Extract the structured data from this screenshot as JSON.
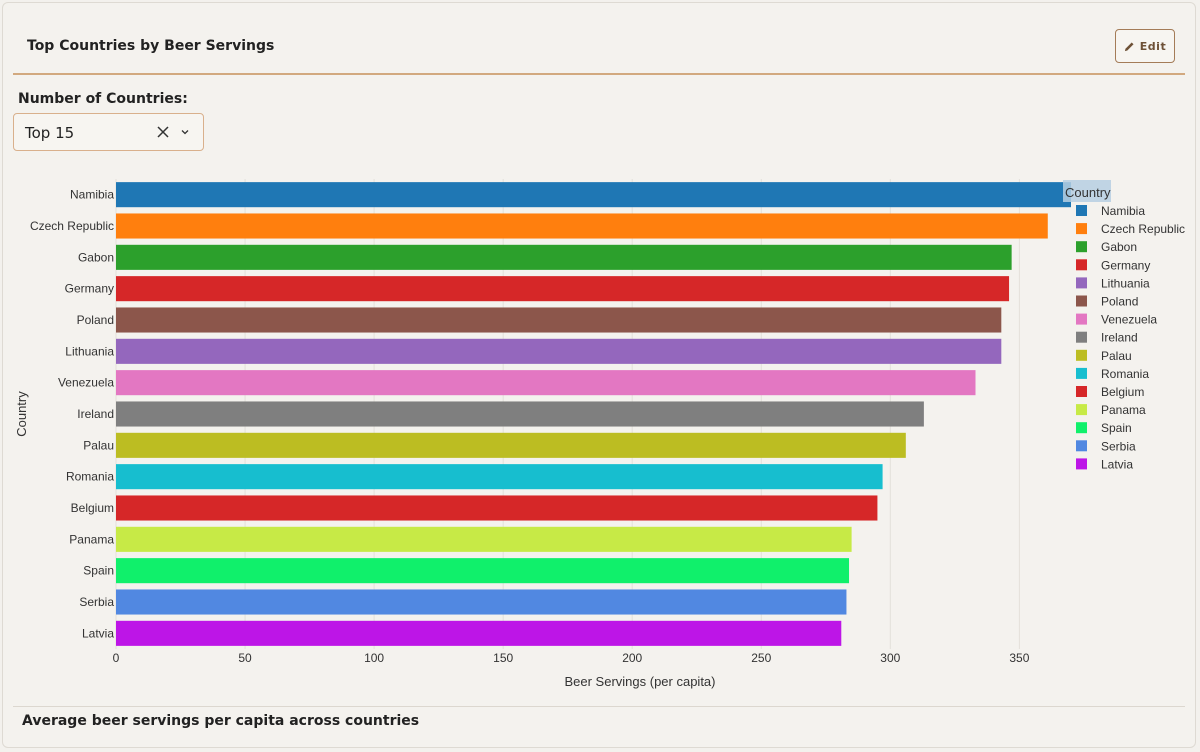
{
  "card": {
    "title": "Top Countries by Beer Servings",
    "edit_label": "Edit",
    "footer_text": "Average beer servings per capita across countries"
  },
  "control": {
    "label": "Number of Countries:",
    "selected": "Top 15"
  },
  "chart_data": {
    "type": "bar",
    "orientation": "horizontal",
    "xlabel": "Beer Servings (per capita)",
    "ylabel": "Country",
    "xlim": [
      0,
      370
    ],
    "xticks": [
      0,
      50,
      100,
      150,
      200,
      250,
      300,
      350
    ],
    "grid": true,
    "legend_title": "Country",
    "legend_position": "right",
    "categories": [
      "Namibia",
      "Czech Republic",
      "Gabon",
      "Germany",
      "Poland",
      "Lithuania",
      "Venezuela",
      "Ireland",
      "Palau",
      "Romania",
      "Belgium",
      "Panama",
      "Spain",
      "Serbia",
      "Latvia"
    ],
    "values": [
      376,
      361,
      347,
      346,
      343,
      343,
      333,
      313,
      306,
      297,
      295,
      285,
      284,
      283,
      281
    ],
    "colors": [
      "#1f77b4",
      "#ff7f0e",
      "#2ca02c",
      "#d62728",
      "#8c564b",
      "#9467bd",
      "#e377c2",
      "#7f7f7f",
      "#bcbd22",
      "#17becf",
      "#d62728",
      "#c7ea46",
      "#10f06b",
      "#5188e1",
      "#bd15e7"
    ],
    "legend_order": [
      "Namibia",
      "Czech Republic",
      "Gabon",
      "Germany",
      "Lithuania",
      "Poland",
      "Venezuela",
      "Ireland",
      "Palau",
      "Romania",
      "Belgium",
      "Panama",
      "Spain",
      "Serbia",
      "Latvia"
    ]
  }
}
